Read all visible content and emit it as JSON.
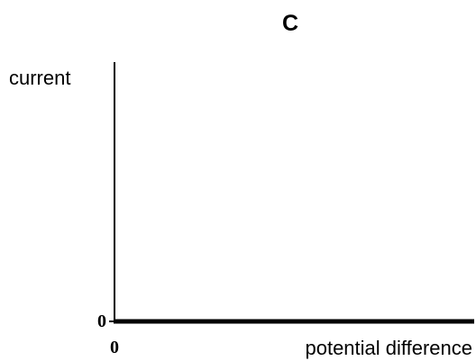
{
  "chart_data": {
    "type": "line",
    "title": "C",
    "xlabel": "potential difference",
    "ylabel": "current",
    "x_origin_label": "0",
    "y_origin_label": "0",
    "series": [],
    "grid": false
  }
}
